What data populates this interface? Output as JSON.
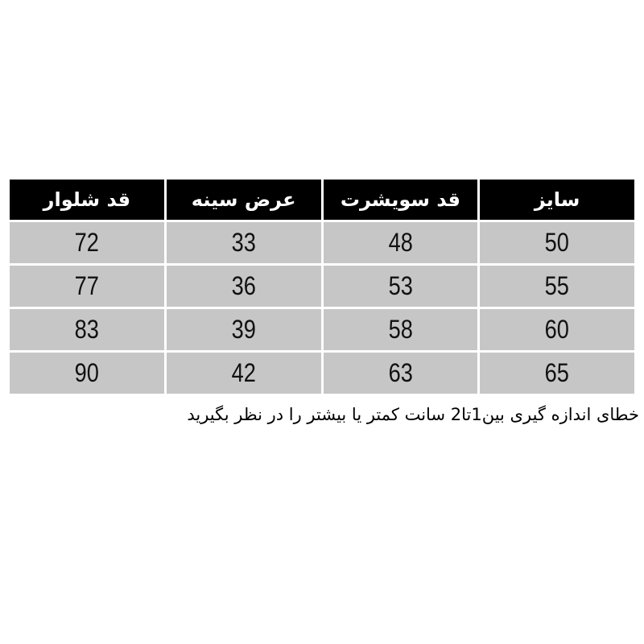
{
  "table": {
    "headers": [
      "سایز",
      "قد سویشرت",
      "عرض سینه",
      "قد شلوار"
    ],
    "rows": [
      [
        "50",
        "48",
        "33",
        "72"
      ],
      [
        "55",
        "53",
        "36",
        "77"
      ],
      [
        "60",
        "58",
        "39",
        "83"
      ],
      [
        "65",
        "63",
        "42",
        "90"
      ]
    ]
  },
  "note": "خطای اندازه گیری بین1تا2 سانت کمتر یا بیشتر را در نظر بگیرید",
  "colors": {
    "header_bg": "#000000",
    "header_text": "#ffffff",
    "cell_bg": "#c6c6c6"
  }
}
